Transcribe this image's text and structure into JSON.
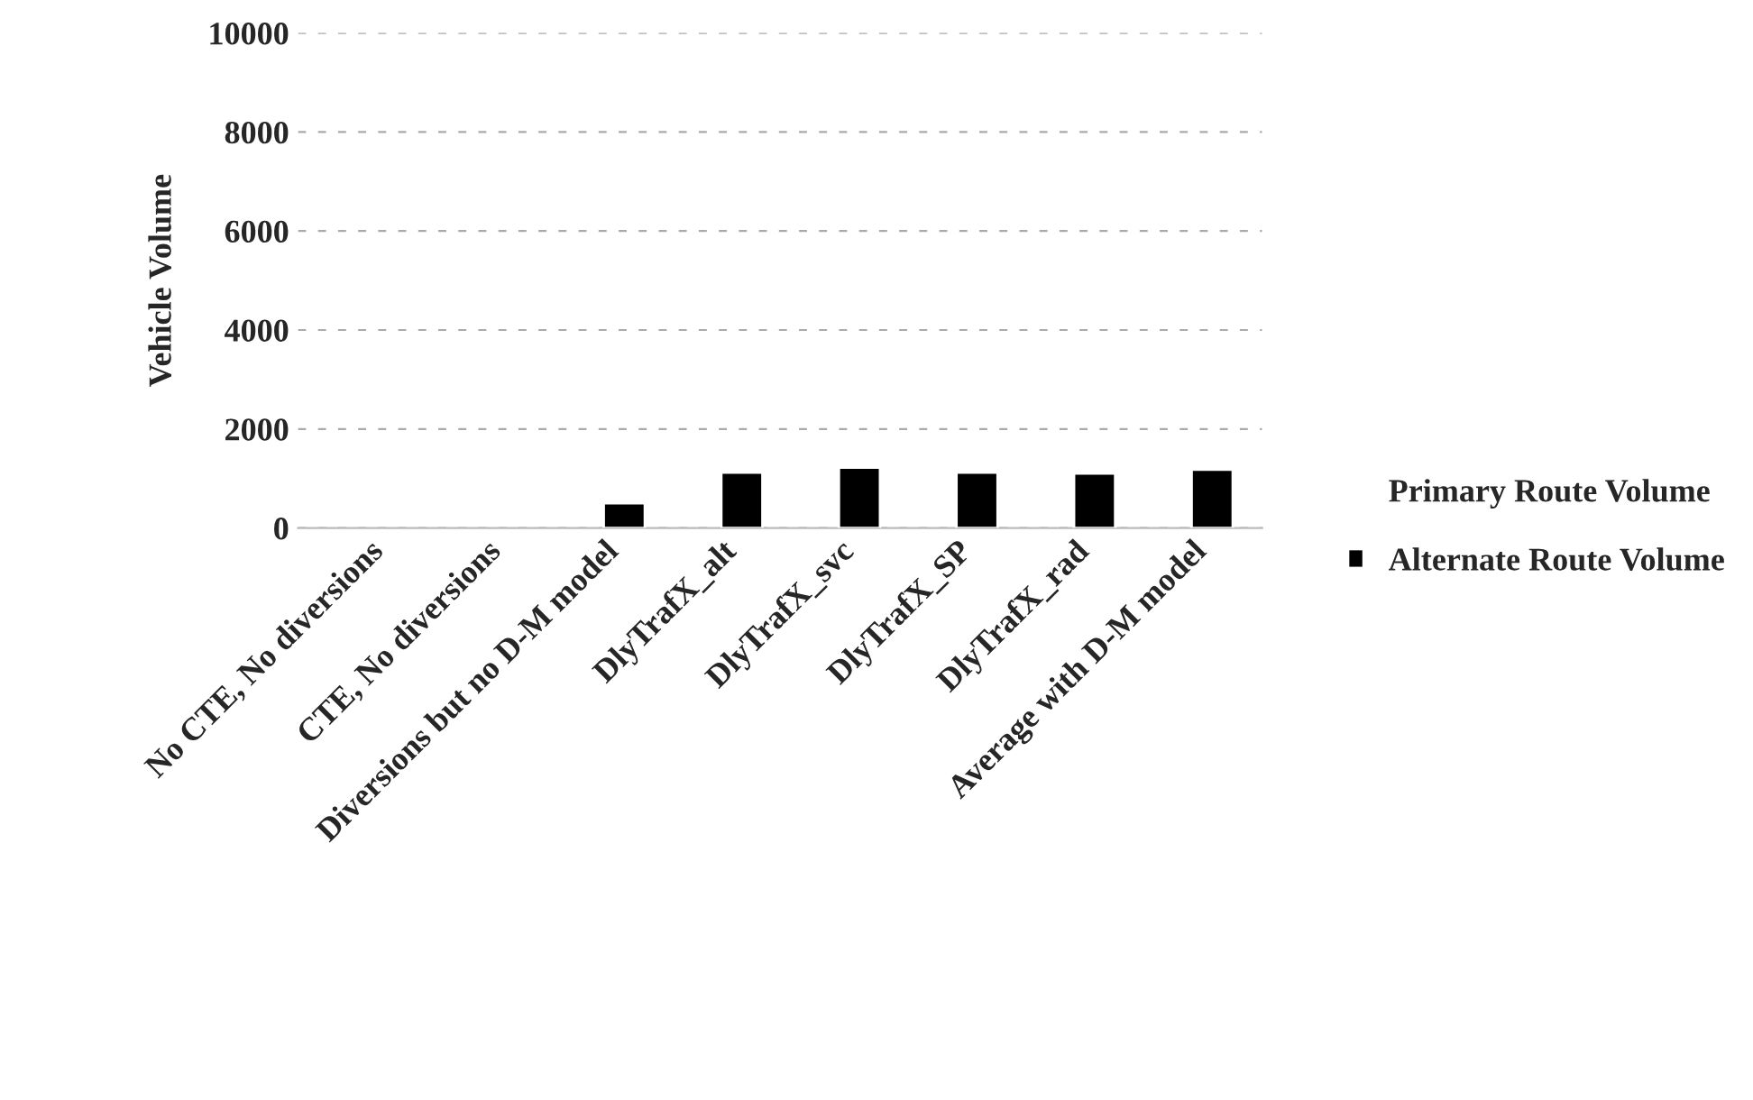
{
  "chart_data": {
    "type": "bar",
    "ylabel": "Vehicle Volume",
    "categories": [
      "No CTE, No diversions",
      "CTE, No diversions",
      "Diversions but no D-M model",
      "DlyTrafX_alt",
      "DlyTrafX_svc",
      "DlyTrafX_SP",
      "DlyTrafX_rad",
      "Average with D-M model"
    ],
    "series": [
      {
        "name": "Primary Route Volume",
        "values": [
          null,
          null,
          null,
          null,
          null,
          null,
          null,
          null
        ]
      },
      {
        "name": "Alternate Route Volume",
        "color": "#000000",
        "values": [
          null,
          null,
          500,
          1120,
          1220,
          1120,
          1100,
          1180
        ]
      }
    ],
    "ylim": [
      0,
      10000
    ],
    "yticks": [
      0,
      2000,
      4000,
      6000,
      8000,
      10000
    ],
    "grid": "y",
    "legend": "right"
  }
}
